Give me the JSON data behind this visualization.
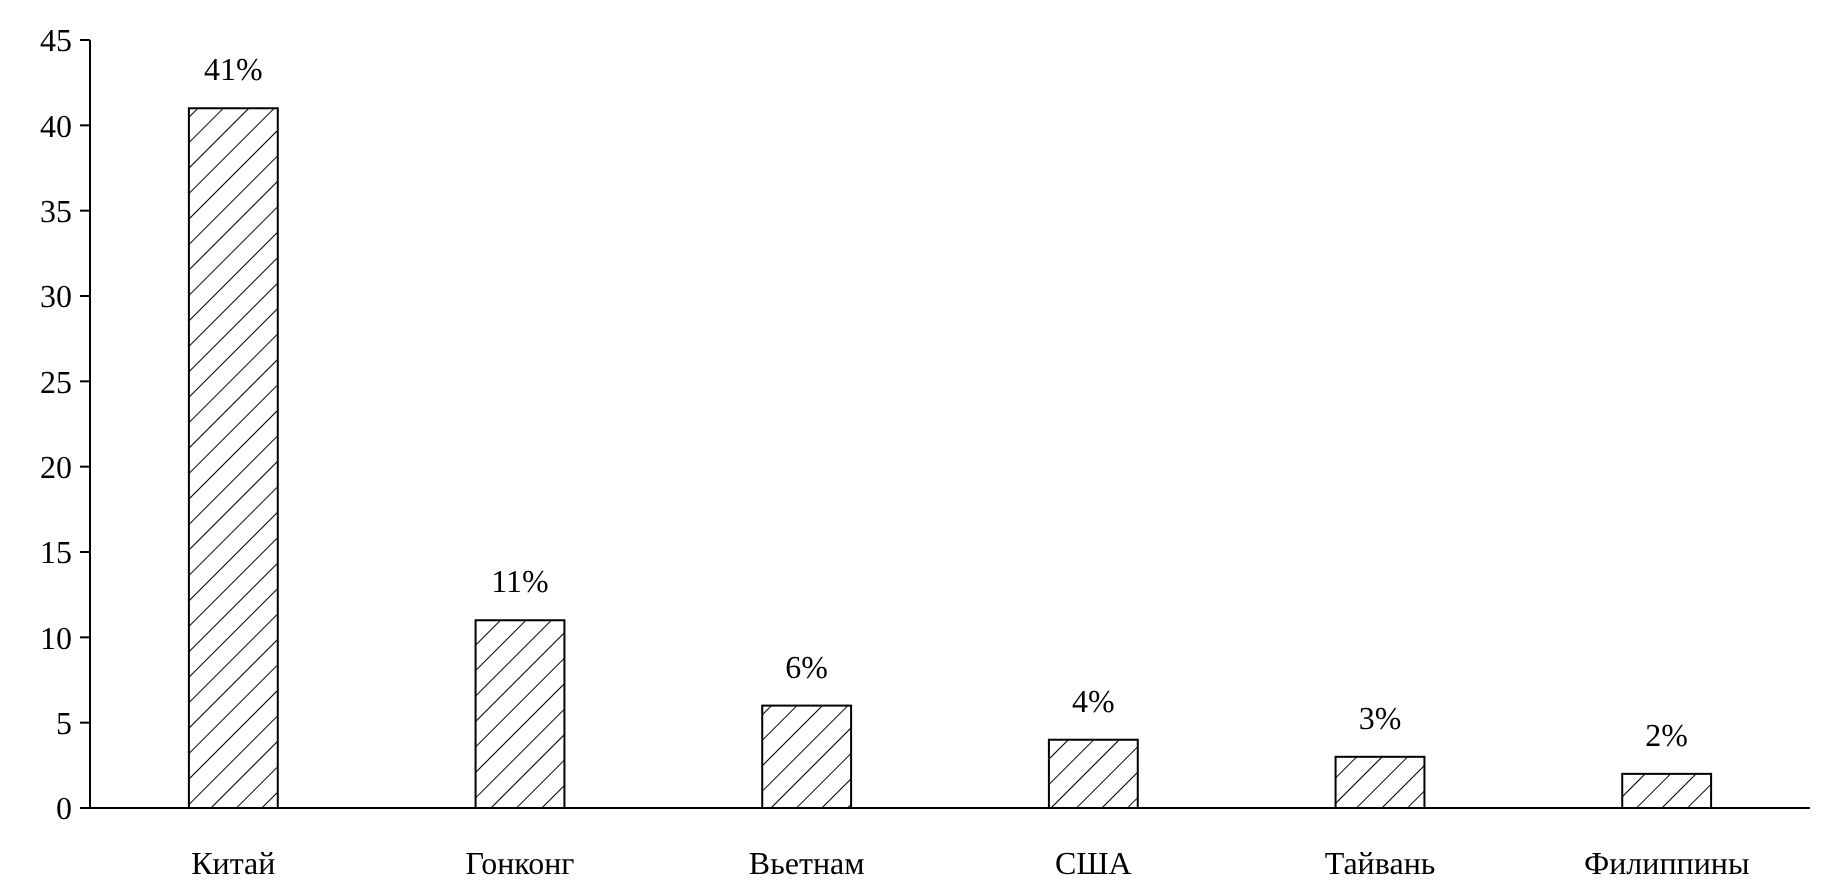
{
  "chart_data": {
    "type": "bar",
    "categories": [
      "Китай",
      "Гонконг",
      "Вьетнам",
      "США",
      "Тайвань",
      "Филиппины"
    ],
    "values": [
      41,
      11,
      6,
      4,
      3,
      2
    ],
    "value_labels": [
      "41%",
      "11%",
      "6%",
      "4%",
      "3%",
      "2%"
    ],
    "color": "#000000",
    "ylim": [
      0,
      45
    ],
    "yticks": [
      0,
      5,
      10,
      15,
      20,
      25,
      30,
      35,
      40,
      45
    ],
    "grid": false
  }
}
